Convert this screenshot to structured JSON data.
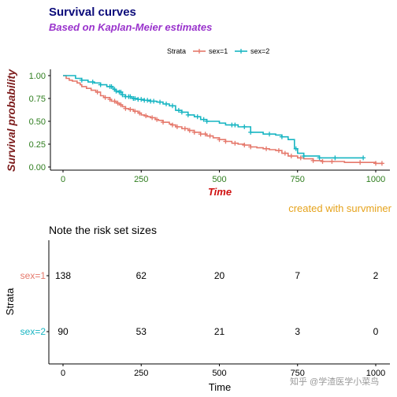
{
  "colors": {
    "title": "#0b0b7a",
    "subtitle": "#9932cc",
    "ylab": "#7b1a1a",
    "xlab": "#d01010",
    "ticks": "#2e7d1e",
    "caption": "#e6a31c",
    "sex1": "#e5786b",
    "sex2": "#17b5c2"
  },
  "chart_data": [
    {
      "type": "line",
      "title": "Survival curves",
      "subtitle": "Based on Kaplan-Meier estimates",
      "xlabel": "Time",
      "ylabel": "Survival probability",
      "xlim": [
        0,
        1000
      ],
      "ylim": [
        0,
        1
      ],
      "x_ticks": [
        0,
        250,
        500,
        750,
        1000
      ],
      "y_ticks": [
        "0.00",
        "0.25",
        "0.50",
        "0.75",
        "1.00"
      ],
      "legend_position": "top",
      "legend_title": "Strata",
      "caption": "created with survminer",
      "grid": false,
      "step": true,
      "series": [
        {
          "name": "sex=1",
          "color_key": "sex1",
          "x": [
            0,
            10,
            20,
            30,
            45,
            55,
            60,
            75,
            90,
            105,
            120,
            130,
            150,
            155,
            170,
            180,
            190,
            200,
            210,
            225,
            240,
            250,
            260,
            270,
            280,
            295,
            305,
            320,
            340,
            350,
            360,
            380,
            400,
            420,
            440,
            460,
            480,
            500,
            520,
            540,
            560,
            580,
            600,
            620,
            640,
            660,
            680,
            700,
            720,
            750,
            770,
            800,
            830,
            860,
            900,
            960,
            1000,
            1022
          ],
          "y": [
            1.0,
            0.97,
            0.95,
            0.94,
            0.92,
            0.9,
            0.88,
            0.86,
            0.84,
            0.82,
            0.78,
            0.76,
            0.74,
            0.72,
            0.7,
            0.68,
            0.66,
            0.64,
            0.63,
            0.61,
            0.59,
            0.57,
            0.56,
            0.55,
            0.54,
            0.52,
            0.51,
            0.49,
            0.47,
            0.46,
            0.44,
            0.42,
            0.4,
            0.38,
            0.36,
            0.34,
            0.32,
            0.3,
            0.28,
            0.26,
            0.25,
            0.24,
            0.22,
            0.21,
            0.2,
            0.19,
            0.18,
            0.15,
            0.12,
            0.1,
            0.09,
            0.07,
            0.06,
            0.06,
            0.05,
            0.05,
            0.04,
            0.04
          ],
          "censored_x": [
            110,
            135,
            150,
            165,
            175,
            185,
            200,
            215,
            230,
            245,
            265,
            285,
            300,
            320,
            350,
            365,
            390,
            405,
            420,
            440,
            455,
            470,
            500,
            520,
            550,
            580,
            600,
            650,
            690,
            710,
            730,
            760,
            800,
            830,
            860,
            950,
            1000,
            1020
          ]
        },
        {
          "name": "sex=2",
          "color_key": "sex2",
          "x": [
            0,
            40,
            60,
            80,
            100,
            120,
            140,
            160,
            170,
            180,
            190,
            200,
            220,
            240,
            260,
            280,
            300,
            320,
            340,
            360,
            380,
            400,
            420,
            440,
            460,
            500,
            520,
            560,
            600,
            640,
            680,
            700,
            720,
            740,
            750,
            770,
            820,
            870,
            900,
            960
          ],
          "y": [
            1.0,
            0.97,
            0.95,
            0.93,
            0.92,
            0.9,
            0.88,
            0.85,
            0.83,
            0.82,
            0.79,
            0.77,
            0.75,
            0.74,
            0.73,
            0.72,
            0.71,
            0.69,
            0.67,
            0.62,
            0.6,
            0.57,
            0.55,
            0.52,
            0.5,
            0.48,
            0.46,
            0.44,
            0.38,
            0.36,
            0.35,
            0.33,
            0.3,
            0.2,
            0.15,
            0.12,
            0.1,
            0.1,
            0.1,
            0.1
          ],
          "censored_x": [
            60,
            95,
            120,
            150,
            155,
            165,
            170,
            180,
            185,
            190,
            200,
            210,
            215,
            225,
            230,
            240,
            250,
            260,
            270,
            280,
            290,
            310,
            330,
            350,
            370,
            380,
            400,
            430,
            450,
            460,
            540,
            550,
            580,
            600,
            660,
            700,
            745,
            770,
            820,
            870,
            960
          ]
        }
      ]
    },
    {
      "type": "table",
      "title": "Note the risk set sizes",
      "xlabel": "Time",
      "ylabel": "Strata",
      "x_ticks": [
        0,
        250,
        500,
        750,
        1000
      ],
      "x_tick_labels": [
        "0",
        "250",
        "500",
        "750",
        "1000"
      ],
      "rows": [
        {
          "name": "sex=1",
          "color_key": "sex1",
          "values": [
            138,
            62,
            20,
            7,
            2
          ]
        },
        {
          "name": "sex=2",
          "color_key": "sex2",
          "values": [
            90,
            53,
            21,
            3,
            0
          ]
        }
      ]
    }
  ],
  "watermark": "知乎 @学渣医学小菜鸟"
}
